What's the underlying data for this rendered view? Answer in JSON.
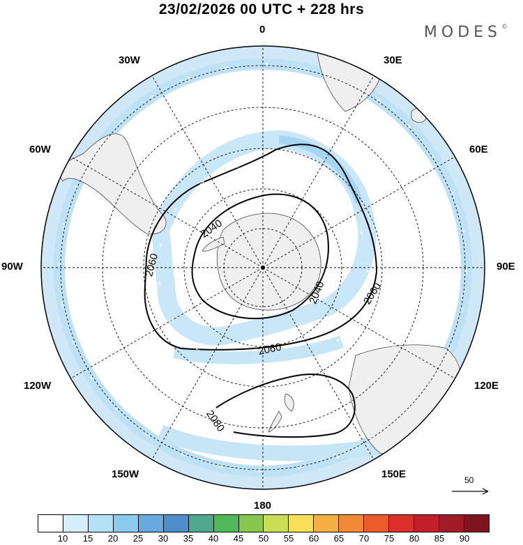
{
  "header": {
    "title": "23/02/2026  00 UTC  + 228 hrs",
    "brand": "MODES",
    "brand_mark": "©"
  },
  "map": {
    "projection": "south polar stereographic",
    "longitude_labels": {
      "lon_0": "0",
      "lon_30e": "30E",
      "lon_60e": "60E",
      "lon_90e": "90E",
      "lon_120e": "120E",
      "lon_150e": "150E",
      "lon_180": "180",
      "lon_150w": "150W",
      "lon_120w": "120W",
      "lon_90w": "90W",
      "lon_60w": "60W",
      "lon_30w": "30W"
    },
    "contours": [
      {
        "label": "2040",
        "value": 2040
      },
      {
        "label": "2060",
        "value": 2060
      },
      {
        "label": "2080",
        "value": 2080
      }
    ],
    "contour_labels": {
      "c2040a": "2040",
      "c2040b": "2040",
      "c2060a": "2060",
      "c2060b": "2060",
      "c2060c": "2060",
      "c2080a": "2080"
    },
    "reference_vector": {
      "value": "50"
    }
  },
  "colorbar": {
    "ticks": [
      "10",
      "15",
      "20",
      "25",
      "30",
      "35",
      "40",
      "45",
      "50",
      "55",
      "60",
      "65",
      "70",
      "75",
      "80",
      "85",
      "90"
    ],
    "colors": [
      "#ffffff",
      "#d4eefb",
      "#b5e1f6",
      "#8ccbee",
      "#68aadf",
      "#4e8fc9",
      "#4fa98e",
      "#4fb85a",
      "#86c84e",
      "#c9de55",
      "#f6e05a",
      "#f5b044",
      "#f08a34",
      "#ec5b2c",
      "#dc2f2a",
      "#c21f28",
      "#a01b26",
      "#7e1420"
    ]
  }
}
